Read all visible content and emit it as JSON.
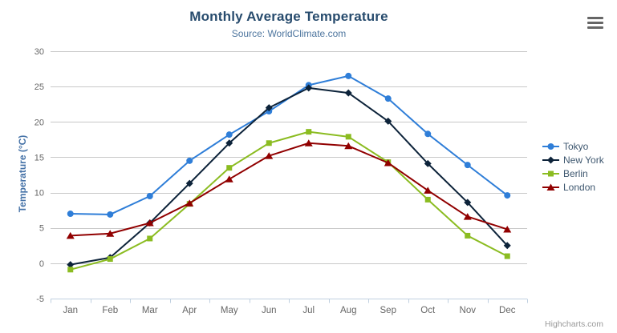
{
  "chart_data": {
    "type": "line",
    "title": "Monthly Average Temperature",
    "subtitle": "Source: WorldClimate.com",
    "categories": [
      "Jan",
      "Feb",
      "Mar",
      "Apr",
      "May",
      "Jun",
      "Jul",
      "Aug",
      "Sep",
      "Oct",
      "Nov",
      "Dec"
    ],
    "xlabel": "",
    "ylabel": "Temperature (°C)",
    "ylim": [
      -5,
      30
    ],
    "ytick_step": 5,
    "grid": true,
    "legend_position": "right",
    "series": [
      {
        "name": "Tokyo",
        "color": "#2f7ed8",
        "marker": "circle",
        "values": [
          7.0,
          6.9,
          9.5,
          14.5,
          18.2,
          21.5,
          25.2,
          26.5,
          23.3,
          18.3,
          13.9,
          9.6
        ]
      },
      {
        "name": "New York",
        "color": "#0d233a",
        "marker": "diamond",
        "values": [
          -0.2,
          0.8,
          5.7,
          11.3,
          17.0,
          22.0,
          24.8,
          24.1,
          20.1,
          14.1,
          8.6,
          2.5
        ]
      },
      {
        "name": "Berlin",
        "color": "#8bbc21",
        "marker": "square",
        "values": [
          -0.9,
          0.6,
          3.5,
          8.4,
          13.5,
          17.0,
          18.6,
          17.9,
          14.3,
          9.0,
          3.9,
          1.0
        ]
      },
      {
        "name": "London",
        "color": "#910000",
        "marker": "triangle",
        "values": [
          3.9,
          4.2,
          5.7,
          8.5,
          11.9,
          15.2,
          17.0,
          16.6,
          14.2,
          10.3,
          6.6,
          4.8
        ]
      }
    ]
  },
  "colors": {
    "title": "#274b6d",
    "subtitle": "#4d759e",
    "axis_title": "#4572a7",
    "axis_label": "#666666",
    "grid_line": "#c8c8c8",
    "axis_line": "#c0d0e0",
    "legend_text": "#3e576f",
    "background": "#ffffff"
  },
  "export_menu": {
    "icon": "hamburger-icon"
  },
  "credit": {
    "label": "Highcharts.com"
  }
}
